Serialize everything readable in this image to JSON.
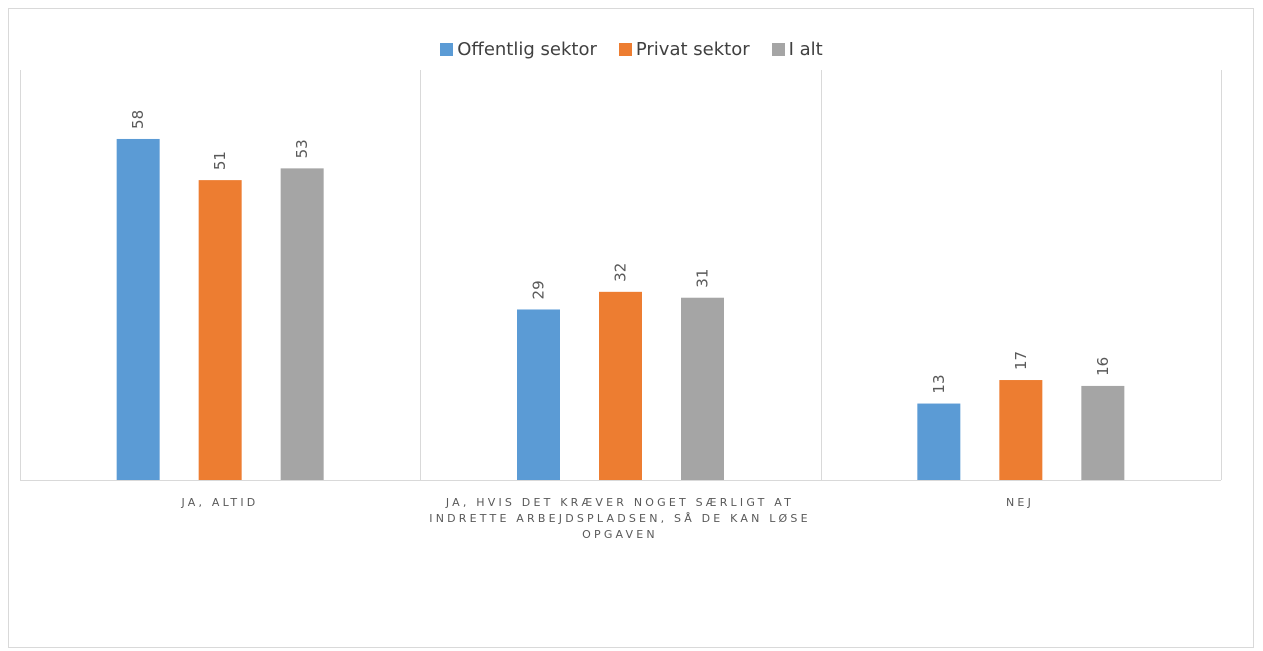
{
  "chart_data": {
    "type": "bar",
    "categories": [
      "JA, ALTID",
      "JA, HVIS DET KRÆVER NOGET SÆRLIGT AT INDRETTE ARBEJDSPLADSEN, SÅ DE KAN LØSE OPGAVEN",
      "NEJ"
    ],
    "series": [
      {
        "name": "Offentlig sektor",
        "values": [
          58,
          29,
          13
        ],
        "color": "#5b9bd5"
      },
      {
        "name": "Privat sektor",
        "values": [
          51,
          32,
          17
        ],
        "color": "#ed7d31"
      },
      {
        "name": "I alt",
        "values": [
          53,
          31,
          16
        ],
        "color": "#a5a5a5"
      }
    ],
    "ylim": [
      0,
      70
    ],
    "grid": "vertical separators between categories",
    "legend_position": "top",
    "data_labels": "vertical, above bars"
  }
}
